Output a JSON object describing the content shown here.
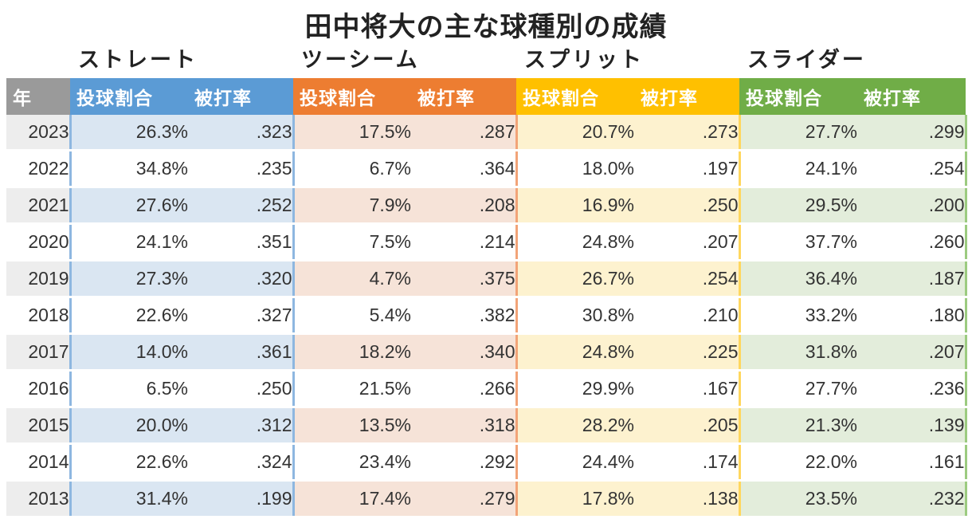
{
  "title": "田中将大の主な球種別の成績",
  "groups": [
    "ストレート",
    "ツーシーム",
    "スプリット",
    "スライダー"
  ],
  "header": {
    "year": "年",
    "ratio": "投球割合",
    "avg": "被打率"
  },
  "rows": [
    {
      "year": "2023",
      "cells": [
        "26.3%",
        ".323",
        "17.5%",
        ".287",
        "20.7%",
        ".273",
        "27.7%",
        ".299"
      ]
    },
    {
      "year": "2022",
      "cells": [
        "34.8%",
        ".235",
        "6.7%",
        ".364",
        "18.0%",
        ".197",
        "24.1%",
        ".254"
      ]
    },
    {
      "year": "2021",
      "cells": [
        "27.6%",
        ".252",
        "7.9%",
        ".208",
        "16.9%",
        ".250",
        "29.5%",
        ".200"
      ]
    },
    {
      "year": "2020",
      "cells": [
        "24.1%",
        ".351",
        "7.5%",
        ".214",
        "24.8%",
        ".207",
        "37.7%",
        ".260"
      ]
    },
    {
      "year": "2019",
      "cells": [
        "27.3%",
        ".320",
        "4.7%",
        ".375",
        "26.7%",
        ".254",
        "36.4%",
        ".187"
      ]
    },
    {
      "year": "2018",
      "cells": [
        "22.6%",
        ".327",
        "5.4%",
        ".382",
        "30.8%",
        ".210",
        "33.2%",
        ".180"
      ]
    },
    {
      "year": "2017",
      "cells": [
        "14.0%",
        ".361",
        "18.2%",
        ".340",
        "24.8%",
        ".225",
        "31.8%",
        ".207"
      ]
    },
    {
      "year": "2016",
      "cells": [
        "6.5%",
        ".250",
        "21.5%",
        ".266",
        "29.9%",
        ".167",
        "27.7%",
        ".236"
      ]
    },
    {
      "year": "2015",
      "cells": [
        "20.0%",
        ".312",
        "13.5%",
        ".318",
        "28.2%",
        ".205",
        "21.3%",
        ".139"
      ]
    },
    {
      "year": "2014",
      "cells": [
        "22.6%",
        ".324",
        "23.4%",
        ".292",
        "24.4%",
        ".174",
        "22.0%",
        ".161"
      ]
    },
    {
      "year": "2013",
      "cells": [
        "31.4%",
        ".199",
        "17.4%",
        ".279",
        "17.8%",
        ".138",
        "23.5%",
        ".232"
      ]
    }
  ]
}
